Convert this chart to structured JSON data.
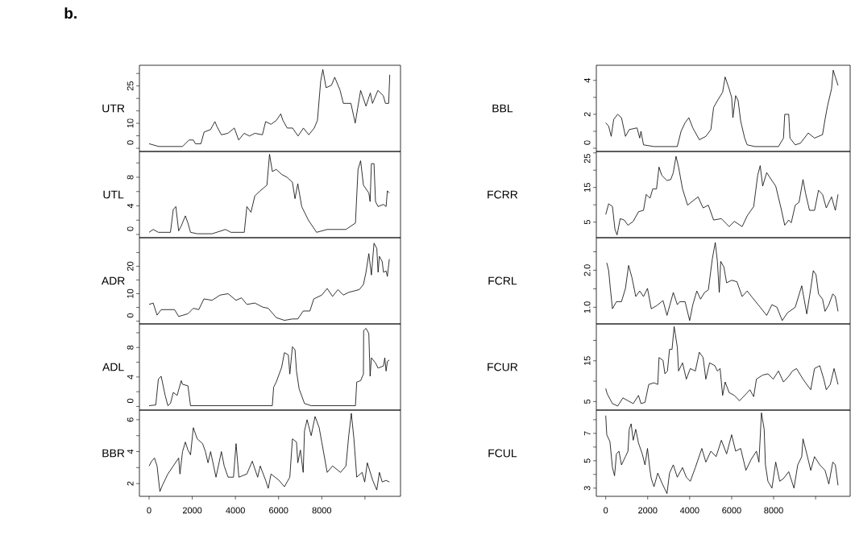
{
  "chart_data": [
    {
      "type": "line",
      "title": "b.",
      "ylabel": "UTR",
      "tick_labels": "y",
      "xlim": [
        -448,
        11648
      ],
      "ylim": [
        -1.3,
        33.3
      ],
      "yticks": [
        0,
        {
          "value": 5,
          "label": null
        },
        10,
        {
          "value": 15,
          "label": null
        },
        {
          "value": 20,
          "label": null
        },
        25,
        {
          "value": 30,
          "label": null
        }
      ],
      "x": [
        0,
        450,
        1550,
        1850,
        2050,
        2150,
        2400,
        2550,
        2850,
        3050,
        3150,
        3350,
        3650,
        3950,
        4150,
        4400,
        4650,
        4900,
        5250,
        5400,
        5650,
        5900,
        6100,
        6200,
        6400,
        6650,
        6900,
        7150,
        7400,
        7650,
        7800,
        7950,
        8050,
        8200,
        8450,
        8600,
        8850,
        9000,
        9350,
        9550,
        9800,
        10050,
        10250,
        10350,
        10600,
        10850,
        10950,
        11100,
        11150
      ],
      "series": [
        {
          "color": "#000000",
          "values": [
            1.8,
            0.7,
            0.7,
            3.3,
            3.3,
            1.8,
            1.8,
            6.5,
            7.5,
            10.7,
            8.6,
            5.4,
            6,
            8.1,
            3.3,
            6,
            4.9,
            6,
            5.4,
            10.7,
            9.6,
            11.2,
            13.8,
            11.2,
            8.1,
            8.1,
            4.9,
            8.1,
            5.4,
            8.1,
            11.2,
            26.9,
            31.6,
            24.3,
            25.3,
            28.5,
            23.2,
            18,
            18,
            10.1,
            23.2,
            16.9,
            22.2,
            18,
            23.2,
            21.1,
            18,
            18,
            29.5
          ]
        }
      ]
    },
    {
      "type": "line",
      "ylabel": "UTL",
      "tick_labels": "y",
      "xlim": [
        -448,
        11648
      ],
      "ylim": [
        -0.45,
        11.6
      ],
      "yticks": [
        0,
        {
          "value": 2,
          "label": null
        },
        4,
        {
          "value": 6,
          "label": null
        },
        8,
        {
          "value": 10,
          "label": null
        }
      ],
      "x": [
        0,
        190,
        430,
        990,
        1120,
        1240,
        1370,
        1490,
        1680,
        1800,
        1920,
        2230,
        2920,
        3540,
        3790,
        4410,
        4530,
        4720,
        4900,
        5150,
        5460,
        5580,
        5710,
        5890,
        6140,
        6390,
        6640,
        6760,
        6890,
        7070,
        7380,
        7760,
        8250,
        9120,
        9560,
        9680,
        9800,
        9930,
        10180,
        10240,
        10300,
        10420,
        10490,
        10610,
        10860,
        10980,
        11040,
        11130
      ],
      "series": [
        {
          "color": "#000000",
          "values": [
            0.3,
            0.7,
            0.3,
            0.3,
            3.5,
            3.9,
            0.5,
            1.2,
            2.6,
            1.6,
            0.3,
            0.1,
            0.1,
            0.7,
            0.3,
            0.3,
            3.9,
            3.1,
            5.4,
            6.1,
            6.9,
            11.2,
            8.8,
            9.1,
            8.4,
            8,
            7.3,
            5,
            7.1,
            3.9,
            2,
            0.3,
            0.7,
            0.7,
            1.6,
            9.1,
            10.3,
            6.9,
            5.8,
            4.6,
            9.9,
            9.9,
            4.6,
            3.9,
            4.2,
            3.9,
            6.1,
            5.8
          ]
        }
      ]
    },
    {
      "type": "line",
      "ylabel": "ADR",
      "tick_labels": "y",
      "xlim": [
        -448,
        11648
      ],
      "ylim": [
        -1,
        30.4
      ],
      "yticks": [
        0,
        {
          "value": 5,
          "label": null
        },
        10,
        {
          "value": 15,
          "label": null
        },
        20,
        {
          "value": 25,
          "label": null
        }
      ],
      "x": [
        0,
        190,
        370,
        560,
        1180,
        1370,
        1800,
        2050,
        2300,
        2540,
        2920,
        3290,
        3660,
        4030,
        4280,
        4530,
        4900,
        5270,
        5520,
        5890,
        6270,
        6640,
        6890,
        7140,
        7450,
        7630,
        8000,
        8250,
        8500,
        8750,
        9000,
        9250,
        9740,
        9930,
        10050,
        10180,
        10300,
        10420,
        10550,
        10610,
        10670,
        10800,
        10860,
        10980,
        11040,
        11130
      ],
      "series": [
        {
          "color": "#000000",
          "values": [
            6.1,
            6.6,
            2.2,
            4.2,
            4.2,
            1.7,
            2.7,
            4.7,
            4.2,
            8.1,
            7.6,
            9.5,
            10,
            7.6,
            8.5,
            6.1,
            6.6,
            5.1,
            4.7,
            1.3,
            0.3,
            0.8,
            0.8,
            3.7,
            3.7,
            8.1,
            9.5,
            11.9,
            9,
            11.5,
            9.5,
            10.5,
            11.5,
            13.4,
            17.8,
            24.6,
            16.8,
            28.4,
            26.5,
            17.8,
            23.6,
            21.7,
            17.8,
            18.3,
            16.3,
            22.6
          ]
        }
      ]
    },
    {
      "type": "line",
      "ylabel": "ADL",
      "tick_labels": "y",
      "xlim": [
        -448,
        11648
      ],
      "ylim": [
        -0.5,
        11.2
      ],
      "yticks": [
        0,
        {
          "value": 2,
          "label": null
        },
        4,
        {
          "value": 6,
          "label": null
        },
        8,
        {
          "value": 10,
          "label": null
        }
      ],
      "x": [
        0,
        310,
        430,
        560,
        745,
        870,
        990,
        1120,
        1300,
        1490,
        1550,
        1800,
        1920,
        5710,
        5770,
        5890,
        6140,
        6270,
        6450,
        6520,
        6640,
        6760,
        6830,
        6950,
        7200,
        7510,
        9560,
        9620,
        9800,
        9930,
        9940,
        10050,
        10180,
        10240,
        10300,
        10490,
        10610,
        10860,
        10920,
        10980,
        11040,
        11130
      ],
      "series": [
        {
          "color": "#000000",
          "values": [
            0.1,
            0.2,
            3.7,
            4.1,
            1.5,
            0.1,
            0.4,
            1.9,
            1.5,
            3.5,
            3.0,
            2.8,
            0.1,
            0.1,
            2.6,
            3.3,
            5.3,
            7.3,
            7.0,
            4.4,
            8.1,
            7.7,
            4.8,
            2.4,
            0.4,
            0.1,
            0.1,
            3.3,
            3.5,
            4.4,
            10.3,
            10.6,
            9.9,
            4.1,
            6.6,
            5.9,
            5.2,
            5.5,
            6.6,
            4.8,
            6.1,
            6.3
          ]
        }
      ]
    },
    {
      "type": "line",
      "ylabel": "BBR",
      "xlim": [
        -448,
        11648
      ],
      "ylim": [
        1.2,
        6.6
      ],
      "xticks": [
        0,
        2000,
        4000,
        6000,
        8000,
        {
          "value": 10000,
          "label": null
        }
      ],
      "yticks": [
        2,
        {
          "value": 3,
          "label": null
        },
        4,
        {
          "value": 5,
          "label": null
        },
        6
      ],
      "x": [
        0,
        120,
        250,
        370,
        500,
        620,
        870,
        1120,
        1370,
        1430,
        1550,
        1680,
        1800,
        1920,
        2050,
        2230,
        2480,
        2610,
        2730,
        2850,
        3100,
        3350,
        3480,
        3660,
        3910,
        4030,
        4160,
        4530,
        4780,
        5030,
        5150,
        5400,
        5520,
        5650,
        6020,
        6270,
        6520,
        6640,
        6830,
        6890,
        7010,
        7140,
        7200,
        7320,
        7510,
        7690,
        7880,
        8000,
        8250,
        8500,
        8870,
        9120,
        9250,
        9370,
        9490,
        9620,
        9870,
        9990,
        10110,
        10360,
        10550,
        10670,
        10800,
        10980,
        11130
      ],
      "series": [
        {
          "color": "#000000",
          "values": [
            3.1,
            3.4,
            3.6,
            3.1,
            1.5,
            1.9,
            2.6,
            3.1,
            3.6,
            2.6,
            4.0,
            4.6,
            4.1,
            3.8,
            5.5,
            4.8,
            4.5,
            4.0,
            3.3,
            4.0,
            2.4,
            4.0,
            3.1,
            2.4,
            2.4,
            4.5,
            2.4,
            2.6,
            3.4,
            2.4,
            3.1,
            2.2,
            1.7,
            2.6,
            2.2,
            1.8,
            2.4,
            4.8,
            4.6,
            3.3,
            4.1,
            2.7,
            5.3,
            6.0,
            5.0,
            6.2,
            5.5,
            4.6,
            2.7,
            3.1,
            2.7,
            3.1,
            5.0,
            6.4,
            4.8,
            2.4,
            2.7,
            2.1,
            3.3,
            2.2,
            1.6,
            2.7,
            2.1,
            2.2,
            2.1
          ]
        }
      ]
    },
    {
      "type": "line",
      "ylabel": "BBL",
      "tick_labels": "y",
      "xlim": [
        -448,
        11648
      ],
      "ylim": [
        -0.19,
        4.89
      ],
      "yticks": [
        0,
        {
          "value": 1,
          "label": null
        },
        2,
        {
          "value": 3,
          "label": null
        },
        4
      ],
      "x": [
        0,
        140,
        260,
        380,
        570,
        750,
        940,
        1120,
        1490,
        1620,
        1680,
        1800,
        2300,
        3410,
        3590,
        3780,
        3960,
        4150,
        4460,
        4770,
        5010,
        5140,
        5320,
        5570,
        5690,
        5880,
        6000,
        6060,
        6190,
        6310,
        6430,
        6620,
        6740,
        7110,
        8230,
        8470,
        8530,
        8720,
        8780,
        9030,
        9280,
        9650,
        9950,
        10330,
        10450,
        10570,
        10760,
        10840,
        10940,
        11070
      ],
      "series": [
        {
          "color": "#000000",
          "values": [
            1.5,
            1.3,
            0.7,
            1.7,
            2.0,
            1.8,
            0.7,
            1.1,
            1.2,
            0.6,
            1.0,
            0.2,
            0.1,
            0.1,
            1.0,
            1.5,
            1.8,
            1.2,
            0.5,
            0.7,
            1.1,
            2.4,
            2.8,
            3.3,
            4.2,
            3.5,
            3.0,
            1.8,
            3.1,
            2.8,
            1.6,
            0.6,
            0.2,
            0.1,
            0.1,
            0.6,
            2.0,
            2.0,
            0.6,
            0.2,
            0.3,
            0.9,
            0.6,
            0.8,
            1.7,
            2.5,
            3.5,
            4.6,
            4.2,
            3.7
          ]
        }
      ]
    },
    {
      "type": "line",
      "ylabel": "FCRR",
      "tick_labels": "y",
      "xlim": [
        -448,
        11648
      ],
      "ylim": [
        0.5,
        25.4
      ],
      "yticks": [
        5,
        {
          "value": 10,
          "label": null
        },
        15,
        {
          "value": 20,
          "label": null
        },
        25
      ],
      "x": [
        0,
        140,
        320,
        440,
        540,
        690,
        880,
        1060,
        1310,
        1560,
        1800,
        1930,
        2110,
        2240,
        2420,
        2540,
        2670,
        2920,
        3100,
        3220,
        3350,
        3470,
        3660,
        3900,
        4150,
        4400,
        4640,
        4890,
        5140,
        5510,
        5880,
        6130,
        6500,
        6740,
        7050,
        7240,
        7360,
        7480,
        7670,
        7920,
        8100,
        8350,
        8530,
        8720,
        8840,
        9030,
        9210,
        9400,
        9520,
        9710,
        9950,
        10140,
        10330,
        10510,
        10760,
        10940,
        11070
      ],
      "series": [
        {
          "color": "#000000",
          "values": [
            7.2,
            10.3,
            9.5,
            2.9,
            1.3,
            6.0,
            5.6,
            4.1,
            5.2,
            8.0,
            8.4,
            13.0,
            11.9,
            14.6,
            14.6,
            20.9,
            18.5,
            17.0,
            17.3,
            19.3,
            24.0,
            20.9,
            14.6,
            9.9,
            11.1,
            12.3,
            9.1,
            9.9,
            5.6,
            6.0,
            3.7,
            5.2,
            3.7,
            6.8,
            9.5,
            18.5,
            21.3,
            15.4,
            19.3,
            17.0,
            15.4,
            9.1,
            4.1,
            5.6,
            4.8,
            9.9,
            10.7,
            17.3,
            13.4,
            8.4,
            8.4,
            14.2,
            13.0,
            9.1,
            12.3,
            8.4,
            13.0
          ]
        }
      ]
    },
    {
      "type": "line",
      "ylabel": "FCRL",
      "tick_labels": "y",
      "xlim": [
        -448,
        11648
      ],
      "ylim": [
        0.55,
        2.88
      ],
      "yticks": [
        {
          "value": 1,
          "label": "1.0"
        },
        {
          "value": 1.5,
          "label": null
        },
        {
          "value": 2,
          "label": "2.0"
        },
        {
          "value": 2.5,
          "label": null
        }
      ],
      "x": [
        50,
        140,
        220,
        320,
        510,
        750,
        940,
        1090,
        1250,
        1430,
        1620,
        1800,
        1990,
        2170,
        2420,
        2730,
        2920,
        3220,
        3410,
        3530,
        3780,
        4000,
        4150,
        4340,
        4520,
        4710,
        4890,
        5080,
        5220,
        5320,
        5410,
        5480,
        5630,
        5760,
        6000,
        6250,
        6500,
        6740,
        6990,
        7360,
        7670,
        7920,
        8160,
        8410,
        8660,
        9030,
        9340,
        9580,
        9770,
        9890,
        10020,
        10140,
        10330,
        10450,
        10630,
        10820,
        10940,
        11070
      ],
      "series": [
        {
          "color": "#000000",
          "values": [
            2.2,
            1.99,
            1.51,
            0.96,
            1.15,
            1.15,
            1.51,
            2.13,
            1.8,
            1.29,
            1.44,
            1.29,
            1.51,
            0.96,
            1.04,
            1.18,
            0.78,
            1.4,
            1.07,
            1.15,
            1.15,
            0.64,
            1.07,
            1.44,
            1.22,
            1.4,
            1.47,
            2.31,
            2.75,
            2.24,
            1.4,
            2.24,
            2.09,
            1.66,
            1.73,
            1.69,
            1.29,
            1.44,
            1.26,
            1.0,
            0.78,
            1.07,
            1.0,
            0.64,
            0.85,
            1.0,
            1.58,
            0.82,
            1.51,
            1.99,
            1.88,
            1.36,
            1.22,
            0.89,
            1.07,
            1.36,
            1.29,
            0.89
          ]
        }
      ]
    },
    {
      "type": "line",
      "ylabel": "FCUR",
      "tick_labels": "y",
      "xlim": [
        -448,
        11648
      ],
      "ylim": [
        2.9,
        24.05
      ],
      "yticks": [
        5,
        {
          "value": 10,
          "label": null
        },
        15,
        {
          "value": 20,
          "label": null
        }
      ],
      "x": [
        0,
        70,
        320,
        570,
        820,
        1060,
        1310,
        1560,
        1680,
        1870,
        2050,
        2300,
        2480,
        2540,
        2730,
        2820,
        2940,
        3040,
        3160,
        3260,
        3410,
        3470,
        3660,
        3840,
        4030,
        4270,
        4460,
        4640,
        4770,
        4950,
        5200,
        5320,
        5450,
        5570,
        5690,
        5880,
        6130,
        6370,
        6620,
        6870,
        7050,
        7180,
        7480,
        7730,
        7980,
        8230,
        8470,
        8720,
        8900,
        9090,
        9400,
        9580,
        9770,
        9950,
        10200,
        10390,
        10510,
        10700,
        10880,
        11070
      ],
      "series": [
        {
          "color": "#000000",
          "values": [
            8.2,
            6.9,
            4.5,
            3.9,
            5.9,
            5.2,
            4.5,
            6.5,
            4.5,
            4.8,
            9.2,
            9.6,
            9.2,
            15.8,
            15.1,
            11.8,
            12.5,
            17.8,
            17.8,
            23.4,
            18.4,
            12.5,
            14.5,
            10.5,
            13.1,
            12.5,
            17.1,
            15.8,
            10.5,
            14.5,
            13.8,
            12.5,
            13.1,
            6.5,
            9.8,
            7.2,
            6.5,
            5.2,
            6.5,
            7.9,
            6.2,
            10.5,
            11.5,
            11.8,
            10.5,
            12.5,
            9.8,
            11.2,
            12.5,
            13.1,
            10.5,
            9.2,
            7.9,
            13.1,
            13.8,
            10.5,
            7.9,
            9.2,
            13.1,
            9.2
          ]
        }
      ]
    },
    {
      "type": "line",
      "ylabel": "FCUL",
      "xlim": [
        -448,
        11648
      ],
      "ylim": [
        2.4,
        8.7
      ],
      "xticks": [
        0,
        2000,
        4000,
        6000,
        8000,
        {
          "value": 10000,
          "label": null
        }
      ],
      "yticks": [
        3,
        {
          "value": 4,
          "label": null
        },
        5,
        {
          "value": 6,
          "label": null
        },
        7,
        {
          "value": 8,
          "label": null
        }
      ],
      "x": [
        0,
        50,
        200,
        320,
        420,
        510,
        630,
        750,
        940,
        1060,
        1120,
        1210,
        1310,
        1430,
        1560,
        1740,
        1870,
        1990,
        2110,
        2170,
        2300,
        2480,
        2670,
        2920,
        3040,
        3220,
        3410,
        3660,
        3840,
        4030,
        4270,
        4580,
        4770,
        5010,
        5260,
        5510,
        5760,
        6000,
        6190,
        6430,
        6680,
        6930,
        7180,
        7300,
        7420,
        7550,
        7610,
        7730,
        7920,
        8100,
        8290,
        8470,
        8720,
        8970,
        9150,
        9340,
        9400,
        9580,
        9770,
        9950,
        10200,
        10450,
        10630,
        10820,
        10940,
        11070
      ],
      "series": [
        {
          "color": "#000000",
          "values": [
            8.3,
            6.9,
            6.4,
            4.5,
            3.9,
            5.5,
            5.7,
            4.7,
            5.3,
            5.7,
            7.3,
            7.7,
            6.5,
            7.3,
            6.3,
            5.5,
            4.7,
            5.9,
            4.3,
            3.7,
            3.1,
            4.1,
            3.4,
            2.6,
            4.1,
            4.7,
            3.8,
            4.5,
            3.8,
            3.5,
            4.5,
            5.9,
            4.9,
            5.7,
            5.3,
            6.5,
            5.5,
            6.9,
            5.7,
            5.9,
            4.3,
            5.1,
            5.7,
            4.9,
            8.5,
            7.3,
            4.7,
            3.5,
            3.0,
            4.9,
            3.5,
            3.7,
            4.2,
            3.0,
            4.7,
            5.3,
            6.6,
            5.5,
            4.3,
            5.3,
            4.7,
            4.3,
            3.3,
            4.9,
            4.7,
            3.2
          ]
        }
      ]
    }
  ]
}
